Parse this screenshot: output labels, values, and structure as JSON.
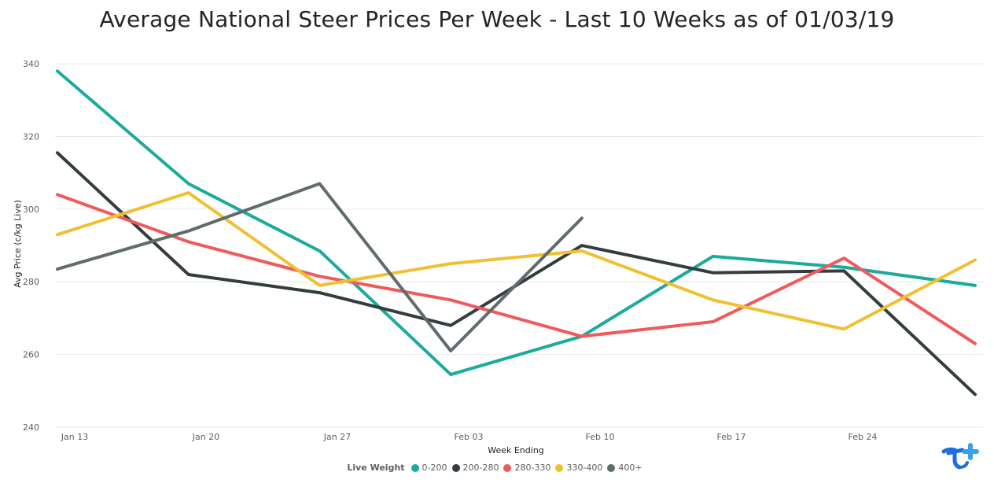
{
  "chart_data": {
    "type": "line",
    "title": "Average National Steer Prices Per Week - Last 10 Weeks as of 01/03/19",
    "xlabel": "Week Ending",
    "ylabel": "Avg Price (c/kg Live)",
    "x_tick_labels": [
      "Jan 13",
      "Jan 20",
      "Jan 27",
      "Feb 03",
      "Feb 10",
      "Feb 17",
      "Feb 24"
    ],
    "y_ticks": [
      240,
      260,
      280,
      300,
      320,
      340
    ],
    "ylim": [
      240,
      345
    ],
    "grid": true,
    "legend_position": "bottom",
    "legend_title": "Live Weight",
    "x": [
      "Jan 12",
      "Jan 19",
      "Jan 26",
      "Feb 02",
      "Feb 09",
      "Feb 16",
      "Feb 23",
      "Mar 01"
    ],
    "series": [
      {
        "name": "0-200",
        "color": "#1aab9b",
        "values": [
          338,
          307,
          288.5,
          254.5,
          265,
          287,
          284,
          279
        ]
      },
      {
        "name": "200-280",
        "color": "#333d3f",
        "values": [
          315.5,
          282,
          277,
          268,
          290,
          282.5,
          283,
          249
        ]
      },
      {
        "name": "280-330",
        "color": "#f05a5a",
        "values": [
          304,
          291,
          281.5,
          275,
          265,
          269,
          286.5,
          263
        ]
      },
      {
        "name": "330-400",
        "color": "#f0c030",
        "values": [
          293,
          304.5,
          279,
          285,
          288.5,
          275,
          267,
          286
        ]
      },
      {
        "name": "400+",
        "color": "#5f6b6d",
        "values": [
          283.5,
          294,
          307,
          261,
          297.5,
          null,
          null,
          null
        ]
      }
    ]
  }
}
